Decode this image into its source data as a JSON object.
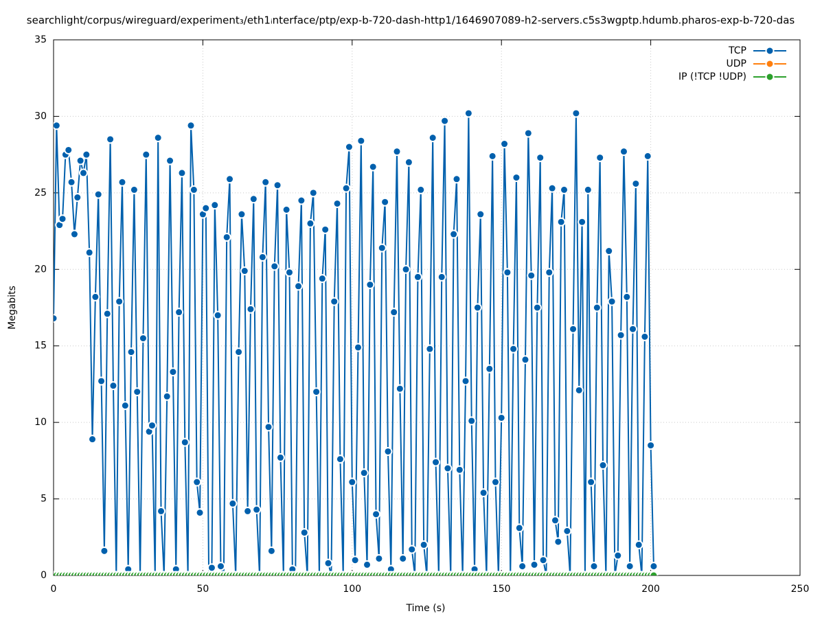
{
  "chart_data": {
    "type": "line",
    "title": "searchlight/corpus/wireguard/experiment₃/eth1ᵢnterface/ptp/exp-b-720-dash-http1/1646907089-h2-servers.c5s3wgptp.hdumb.pharos-exp-b-720-das",
    "xlabel": "Time (s)",
    "ylabel": "Megabits",
    "x": [
      0,
      1,
      2,
      3,
      4,
      5,
      6,
      7,
      8,
      9,
      10,
      11,
      12,
      13,
      14,
      15,
      16,
      17,
      18,
      19,
      20,
      21,
      22,
      23,
      24,
      25,
      26,
      27,
      28,
      29,
      30,
      31,
      32,
      33,
      34,
      35,
      36,
      37,
      38,
      39,
      40,
      41,
      42,
      43,
      44,
      45,
      46,
      47,
      48,
      49,
      50,
      51,
      52,
      53,
      54,
      55,
      56,
      57,
      58,
      59,
      60,
      61,
      62,
      63,
      64,
      65,
      66,
      67,
      68,
      69,
      70,
      71,
      72,
      73,
      74,
      75,
      76,
      77,
      78,
      79,
      80,
      81,
      82,
      83,
      84,
      85,
      86,
      87,
      88,
      89,
      90,
      91,
      92,
      93,
      94,
      95,
      96,
      97,
      98,
      99,
      100,
      101,
      102,
      103,
      104,
      105,
      106,
      107,
      108,
      109,
      110,
      111,
      112,
      113,
      114,
      115,
      116,
      117,
      118,
      119,
      120,
      121,
      122,
      123,
      124,
      125,
      126,
      127,
      128,
      129,
      130,
      131,
      132,
      133,
      134,
      135,
      136,
      137,
      138,
      139,
      140,
      141,
      142,
      143,
      144,
      145,
      146,
      147,
      148,
      149,
      150,
      151,
      152,
      153,
      154,
      155,
      156,
      157,
      158,
      159,
      160,
      161,
      162,
      163,
      164,
      165,
      166,
      167,
      168,
      169,
      170,
      171,
      172,
      173,
      174,
      175,
      176,
      177,
      178,
      179,
      180,
      181,
      182,
      183,
      184,
      185,
      186,
      187,
      188,
      189,
      190,
      191,
      192,
      193,
      194,
      195,
      196,
      197,
      198,
      199,
      200,
      201
    ],
    "series": [
      {
        "name": "TCP",
        "color": "#0060ad",
        "values": [
          16.8,
          29.4,
          22.9,
          23.3,
          27.5,
          27.8,
          25.7,
          22.3,
          24.7,
          27.1,
          26.3,
          27.5,
          21.1,
          8.9,
          18.2,
          24.9,
          12.7,
          1.6,
          17.1,
          28.5,
          12.4,
          0,
          17.9,
          25.7,
          11.1,
          0.4,
          14.6,
          25.2,
          12.0,
          0,
          15.5,
          27.5,
          9.4,
          9.8,
          0,
          28.6,
          4.2,
          0,
          11.7,
          27.1,
          13.3,
          0.4,
          17.2,
          26.3,
          8.7,
          0,
          29.4,
          25.2,
          6.1,
          4.1,
          23.6,
          24.0,
          0,
          0.5,
          24.2,
          17.0,
          0.6,
          0,
          22.1,
          25.9,
          4.7,
          0,
          14.6,
          23.6,
          19.9,
          4.2,
          17.4,
          24.6,
          4.3,
          0,
          20.8,
          25.7,
          9.7,
          1.6,
          20.2,
          25.5,
          7.7,
          0,
          23.9,
          19.8,
          0.4,
          0,
          18.9,
          24.5,
          2.8,
          0,
          23.0,
          25.0,
          12.0,
          0,
          19.4,
          22.6,
          0.8,
          0,
          17.9,
          24.3,
          7.6,
          0,
          25.3,
          28.0,
          6.1,
          1.0,
          14.9,
          28.4,
          6.7,
          0.7,
          19.0,
          26.7,
          4.0,
          1.1,
          21.4,
          24.4,
          8.1,
          0.4,
          17.2,
          27.7,
          12.2,
          1.1,
          20.0,
          27.0,
          1.7,
          0,
          19.5,
          25.2,
          2.0,
          0,
          14.8,
          28.6,
          7.4,
          0,
          19.5,
          29.7,
          7.0,
          0,
          22.3,
          25.9,
          6.9,
          0,
          12.7,
          30.2,
          10.1,
          0.4,
          17.5,
          23.6,
          5.4,
          0,
          13.5,
          27.4,
          6.1,
          0,
          10.3,
          28.2,
          19.8,
          0,
          14.8,
          26.0,
          3.1,
          0.6,
          14.1,
          28.9,
          19.6,
          0.7,
          17.5,
          27.3,
          1.0,
          0,
          19.8,
          25.3,
          3.6,
          2.2,
          23.1,
          25.2,
          2.9,
          0,
          16.1,
          30.2,
          12.1,
          23.1,
          0,
          25.2,
          6.1,
          0.6,
          17.5,
          27.3,
          7.2,
          0,
          21.2,
          17.9,
          0,
          1.3,
          15.7,
          27.7,
          18.2,
          0.6,
          16.1,
          25.6,
          2.0,
          0,
          15.6,
          27.4,
          8.5,
          0.6
        ]
      },
      {
        "name": "UDP",
        "color": "#ff7f0e",
        "values": [
          0,
          0,
          0,
          0,
          0,
          0,
          0,
          0,
          0,
          0,
          0,
          0,
          0,
          0,
          0,
          0,
          0,
          0,
          0,
          0,
          0,
          0,
          0,
          0,
          0,
          0,
          0,
          0,
          0,
          0,
          0,
          0,
          0,
          0,
          0,
          0,
          0,
          0,
          0,
          0,
          0,
          0,
          0,
          0,
          0,
          0,
          0,
          0,
          0,
          0,
          0,
          0,
          0,
          0,
          0,
          0,
          0,
          0,
          0,
          0,
          0,
          0,
          0,
          0,
          0,
          0,
          0,
          0,
          0,
          0,
          0,
          0,
          0,
          0,
          0,
          0,
          0,
          0,
          0,
          0,
          0,
          0,
          0,
          0,
          0,
          0,
          0,
          0,
          0,
          0,
          0,
          0,
          0,
          0,
          0,
          0,
          0,
          0,
          0,
          0,
          0,
          0,
          0,
          0,
          0,
          0,
          0,
          0,
          0,
          0,
          0,
          0,
          0,
          0,
          0,
          0,
          0,
          0,
          0,
          0,
          0,
          0,
          0,
          0,
          0,
          0,
          0,
          0,
          0,
          0,
          0,
          0,
          0,
          0,
          0,
          0,
          0,
          0,
          0,
          0,
          0,
          0,
          0,
          0,
          0,
          0,
          0,
          0,
          0,
          0,
          0,
          0,
          0,
          0,
          0,
          0,
          0,
          0,
          0,
          0,
          0,
          0,
          0,
          0,
          0,
          0,
          0,
          0,
          0,
          0,
          0,
          0,
          0,
          0,
          0,
          0,
          0,
          0,
          0,
          0,
          0,
          0,
          0,
          0,
          0,
          0,
          0,
          0,
          0,
          0,
          0,
          0,
          0,
          0,
          0,
          0,
          0,
          0,
          0,
          0,
          0,
          0
        ]
      },
      {
        "name": "IP (!TCP  !UDP)",
        "color": "#2ca02c",
        "values": [
          0,
          0,
          0,
          0,
          0,
          0,
          0,
          0,
          0,
          0,
          0,
          0,
          0,
          0,
          0,
          0,
          0,
          0,
          0,
          0,
          0,
          0,
          0,
          0,
          0,
          0,
          0,
          0,
          0,
          0,
          0,
          0,
          0,
          0,
          0,
          0,
          0,
          0,
          0,
          0,
          0,
          0,
          0,
          0,
          0,
          0,
          0,
          0,
          0,
          0,
          0,
          0,
          0,
          0,
          0,
          0,
          0,
          0,
          0,
          0,
          0,
          0,
          0,
          0,
          0,
          0,
          0,
          0,
          0,
          0,
          0,
          0,
          0,
          0,
          0,
          0,
          0,
          0,
          0,
          0,
          0,
          0,
          0,
          0,
          0,
          0,
          0,
          0,
          0,
          0,
          0,
          0,
          0,
          0,
          0,
          0,
          0,
          0,
          0,
          0,
          0,
          0,
          0,
          0,
          0,
          0,
          0,
          0,
          0,
          0,
          0,
          0,
          0,
          0,
          0,
          0,
          0,
          0,
          0,
          0,
          0,
          0,
          0,
          0,
          0,
          0,
          0,
          0,
          0,
          0,
          0,
          0,
          0,
          0,
          0,
          0,
          0,
          0,
          0,
          0,
          0,
          0,
          0,
          0,
          0,
          0,
          0,
          0,
          0,
          0,
          0,
          0,
          0,
          0,
          0,
          0,
          0,
          0,
          0,
          0,
          0,
          0,
          0,
          0,
          0,
          0,
          0,
          0,
          0,
          0,
          0,
          0,
          0,
          0,
          0,
          0,
          0,
          0,
          0,
          0,
          0,
          0,
          0,
          0,
          0,
          0,
          0,
          0,
          0,
          0,
          0,
          0,
          0,
          0,
          0,
          0,
          0,
          0,
          0,
          0,
          0,
          0
        ]
      }
    ],
    "xlim": [
      0,
      250
    ],
    "ylim": [
      0,
      35
    ],
    "xticks": [
      0,
      50,
      100,
      150,
      200,
      250
    ],
    "yticks": [
      0,
      5,
      10,
      15,
      20,
      25,
      30,
      35
    ],
    "grid": true,
    "legend": "top-right"
  }
}
